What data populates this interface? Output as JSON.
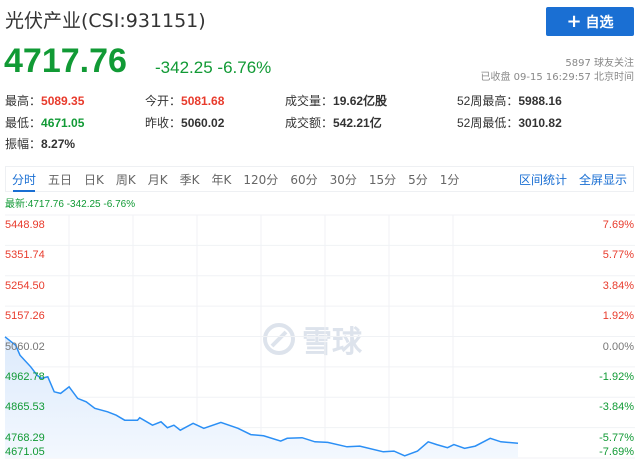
{
  "header": {
    "title": "光伏产业(CSI:931151)",
    "add_button": "自选",
    "add_icon": "plus-icon",
    "price": "4717.76",
    "change": "-342.25",
    "change_pct": "-6.76%",
    "followers": "5897 球友关注",
    "status": "已收盘 09-15 16:29:57 北京时间"
  },
  "stats": [
    {
      "label": "最高：",
      "value": "5089.35",
      "color": "red"
    },
    {
      "label": "今开：",
      "value": "5081.68",
      "color": "red"
    },
    {
      "label": "成交量：",
      "value": "19.62亿股",
      "color": ""
    },
    {
      "label": "52周最高：",
      "value": "5988.16",
      "color": ""
    },
    {
      "label": "最低：",
      "value": "4671.05",
      "color": "green"
    },
    {
      "label": "昨收：",
      "value": "5060.02",
      "color": ""
    },
    {
      "label": "成交额：",
      "value": "542.21亿",
      "color": ""
    },
    {
      "label": "52周最低：",
      "value": "3010.82",
      "color": ""
    },
    {
      "label": "振幅：",
      "value": "8.27%",
      "color": ""
    }
  ],
  "tabs": [
    "分时",
    "五日",
    "日K",
    "周K",
    "月K",
    "季K",
    "年K",
    "120分",
    "60分",
    "30分",
    "15分",
    "5分",
    "1分"
  ],
  "active_tab": "分时",
  "right_links": [
    "区间统计",
    "全屏显示"
  ],
  "latest": "最新:4717.76 -342.25 -6.76%",
  "watermark": "雪球",
  "colors": {
    "up": "#e83b2c",
    "down": "#119a35",
    "line": "#2b8ff5",
    "accent": "#1a6fd3"
  },
  "chart_data": {
    "type": "area",
    "prev_close": 5060.02,
    "ylim": [
      4671.05,
      5448.98
    ],
    "y_ticks_left": [
      "5448.98",
      "5351.74",
      "5254.50",
      "5157.26",
      "5060.02",
      "4962.78",
      "4865.53",
      "4768.29",
      "4671.05"
    ],
    "y_ticks_right": [
      "7.69%",
      "5.77%",
      "3.84%",
      "1.92%",
      "0.00%",
      "-1.92%",
      "-3.84%",
      "-5.77%",
      "-7.69%"
    ],
    "grid": true,
    "points": [
      [
        0,
        5059
      ],
      [
        5,
        5032
      ],
      [
        7,
        5000
      ],
      [
        12,
        4963
      ],
      [
        15,
        4936
      ],
      [
        17,
        4926
      ],
      [
        20,
        4931
      ],
      [
        23,
        4883
      ],
      [
        26,
        4878
      ],
      [
        30,
        4899
      ],
      [
        34,
        4862
      ],
      [
        38,
        4851
      ],
      [
        42,
        4830
      ],
      [
        48,
        4819
      ],
      [
        52,
        4808
      ],
      [
        56,
        4792
      ],
      [
        62,
        4792
      ],
      [
        63,
        4800
      ],
      [
        69,
        4776
      ],
      [
        73,
        4787
      ],
      [
        76,
        4768
      ],
      [
        79,
        4776
      ],
      [
        82,
        4760
      ],
      [
        88,
        4782
      ],
      [
        93,
        4766
      ],
      [
        101,
        4785
      ],
      [
        109,
        4766
      ],
      [
        115,
        4746
      ],
      [
        121,
        4742
      ],
      [
        129,
        4725
      ],
      [
        132,
        4734
      ],
      [
        139,
        4736
      ],
      [
        145,
        4723
      ],
      [
        151,
        4721
      ],
      [
        160,
        4707
      ],
      [
        166,
        4709
      ],
      [
        177,
        4691
      ],
      [
        182,
        4693
      ],
      [
        187,
        4678
      ],
      [
        193,
        4693
      ],
      [
        198,
        4723
      ],
      [
        202,
        4714
      ],
      [
        207,
        4704
      ],
      [
        210,
        4714
      ],
      [
        215,
        4702
      ],
      [
        220,
        4709
      ],
      [
        227,
        4734
      ],
      [
        232,
        4723
      ],
      [
        240,
        4718
      ]
    ]
  }
}
